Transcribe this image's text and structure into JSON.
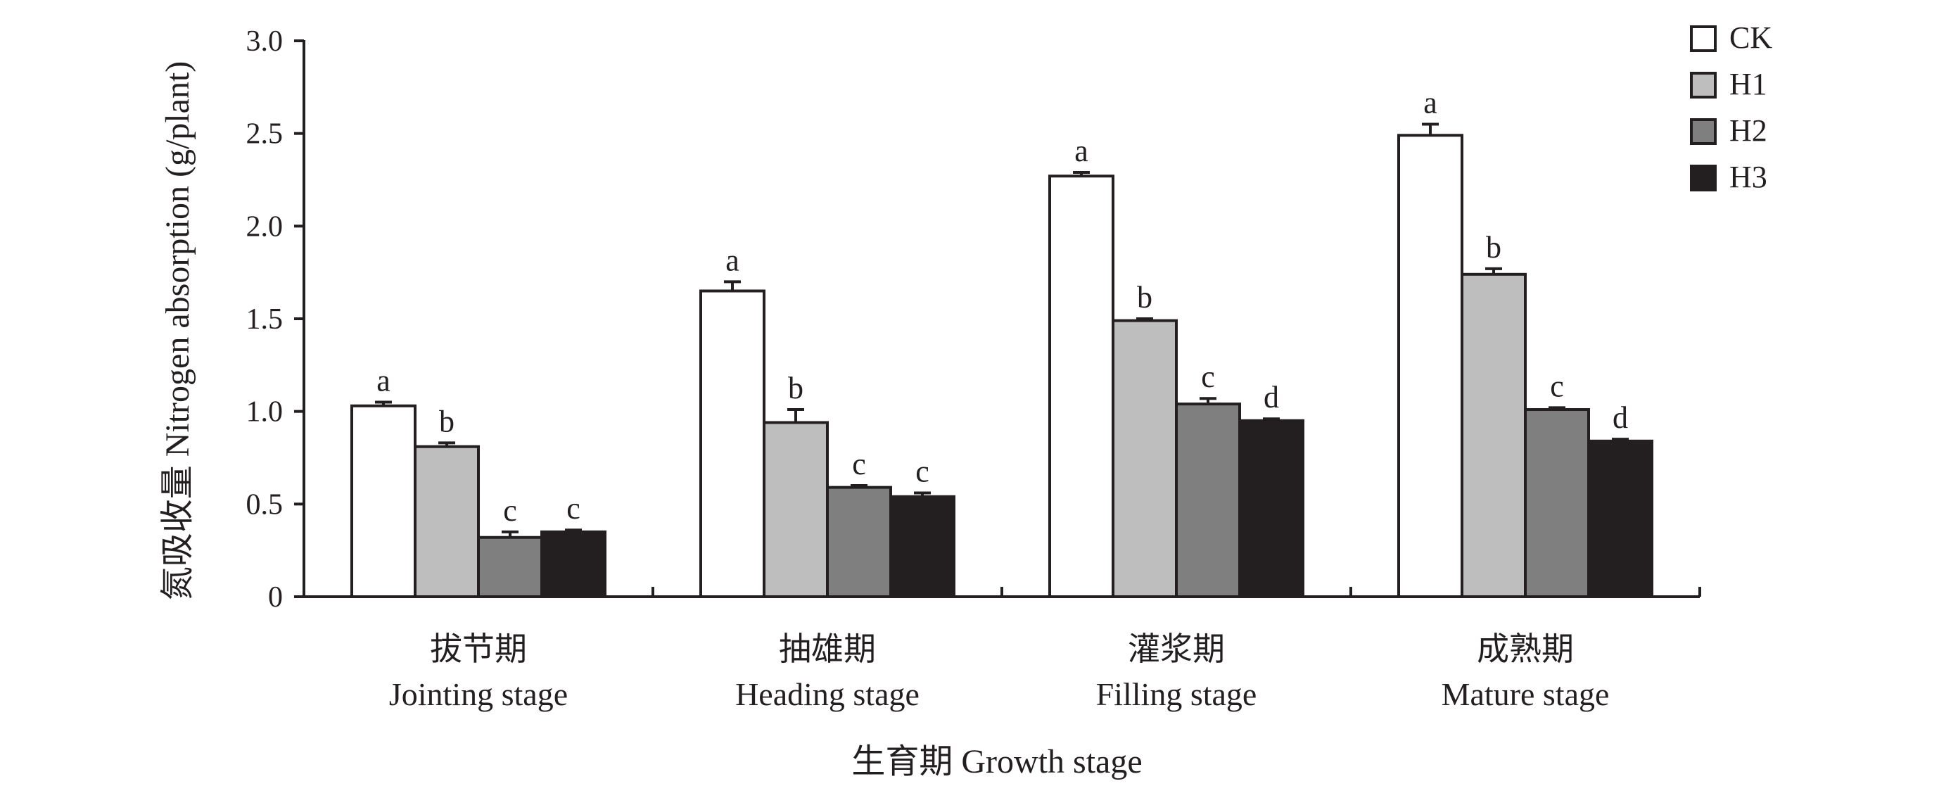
{
  "chart_data": {
    "type": "bar",
    "categories": [
      {
        "cn": "拔节期",
        "en": "Jointing stage"
      },
      {
        "cn": "抽雄期",
        "en": "Heading stage"
      },
      {
        "cn": "灌浆期",
        "en": "Filling stage"
      },
      {
        "cn": "成熟期",
        "en": "Mature stage"
      }
    ],
    "series": [
      {
        "name": "CK",
        "color": "#ffffff",
        "values": [
          1.03,
          1.65,
          2.27,
          2.49
        ],
        "errors": [
          0.02,
          0.05,
          0.02,
          0.06
        ],
        "labels": [
          "a",
          "a",
          "a",
          "a"
        ]
      },
      {
        "name": "H1",
        "color": "#bebebe",
        "values": [
          0.81,
          0.94,
          1.49,
          1.74
        ],
        "errors": [
          0.02,
          0.07,
          0.01,
          0.03
        ],
        "labels": [
          "b",
          "b",
          "b",
          "b"
        ]
      },
      {
        "name": "H2",
        "color": "#7f7f7f",
        "values": [
          0.32,
          0.59,
          1.04,
          1.01
        ],
        "errors": [
          0.03,
          0.01,
          0.03,
          0.01
        ],
        "labels": [
          "c",
          "c",
          "c",
          "c"
        ]
      },
      {
        "name": "H3",
        "color": "#231f20",
        "values": [
          0.35,
          0.54,
          0.95,
          0.84
        ],
        "errors": [
          0.01,
          0.02,
          0.01,
          0.01
        ],
        "labels": [
          "c",
          "c",
          "d",
          "d"
        ]
      }
    ],
    "yticks": [
      "0",
      "0.5",
      "1.0",
      "1.5",
      "2.0",
      "2.5",
      "3.0"
    ],
    "ylim": [
      0,
      3.0
    ],
    "ylabel": "氮吸收量 Nitrogen absorption (g/plant)",
    "xlabel": "生育期 Growth stage",
    "legend_position": "top-right",
    "grid": false
  }
}
